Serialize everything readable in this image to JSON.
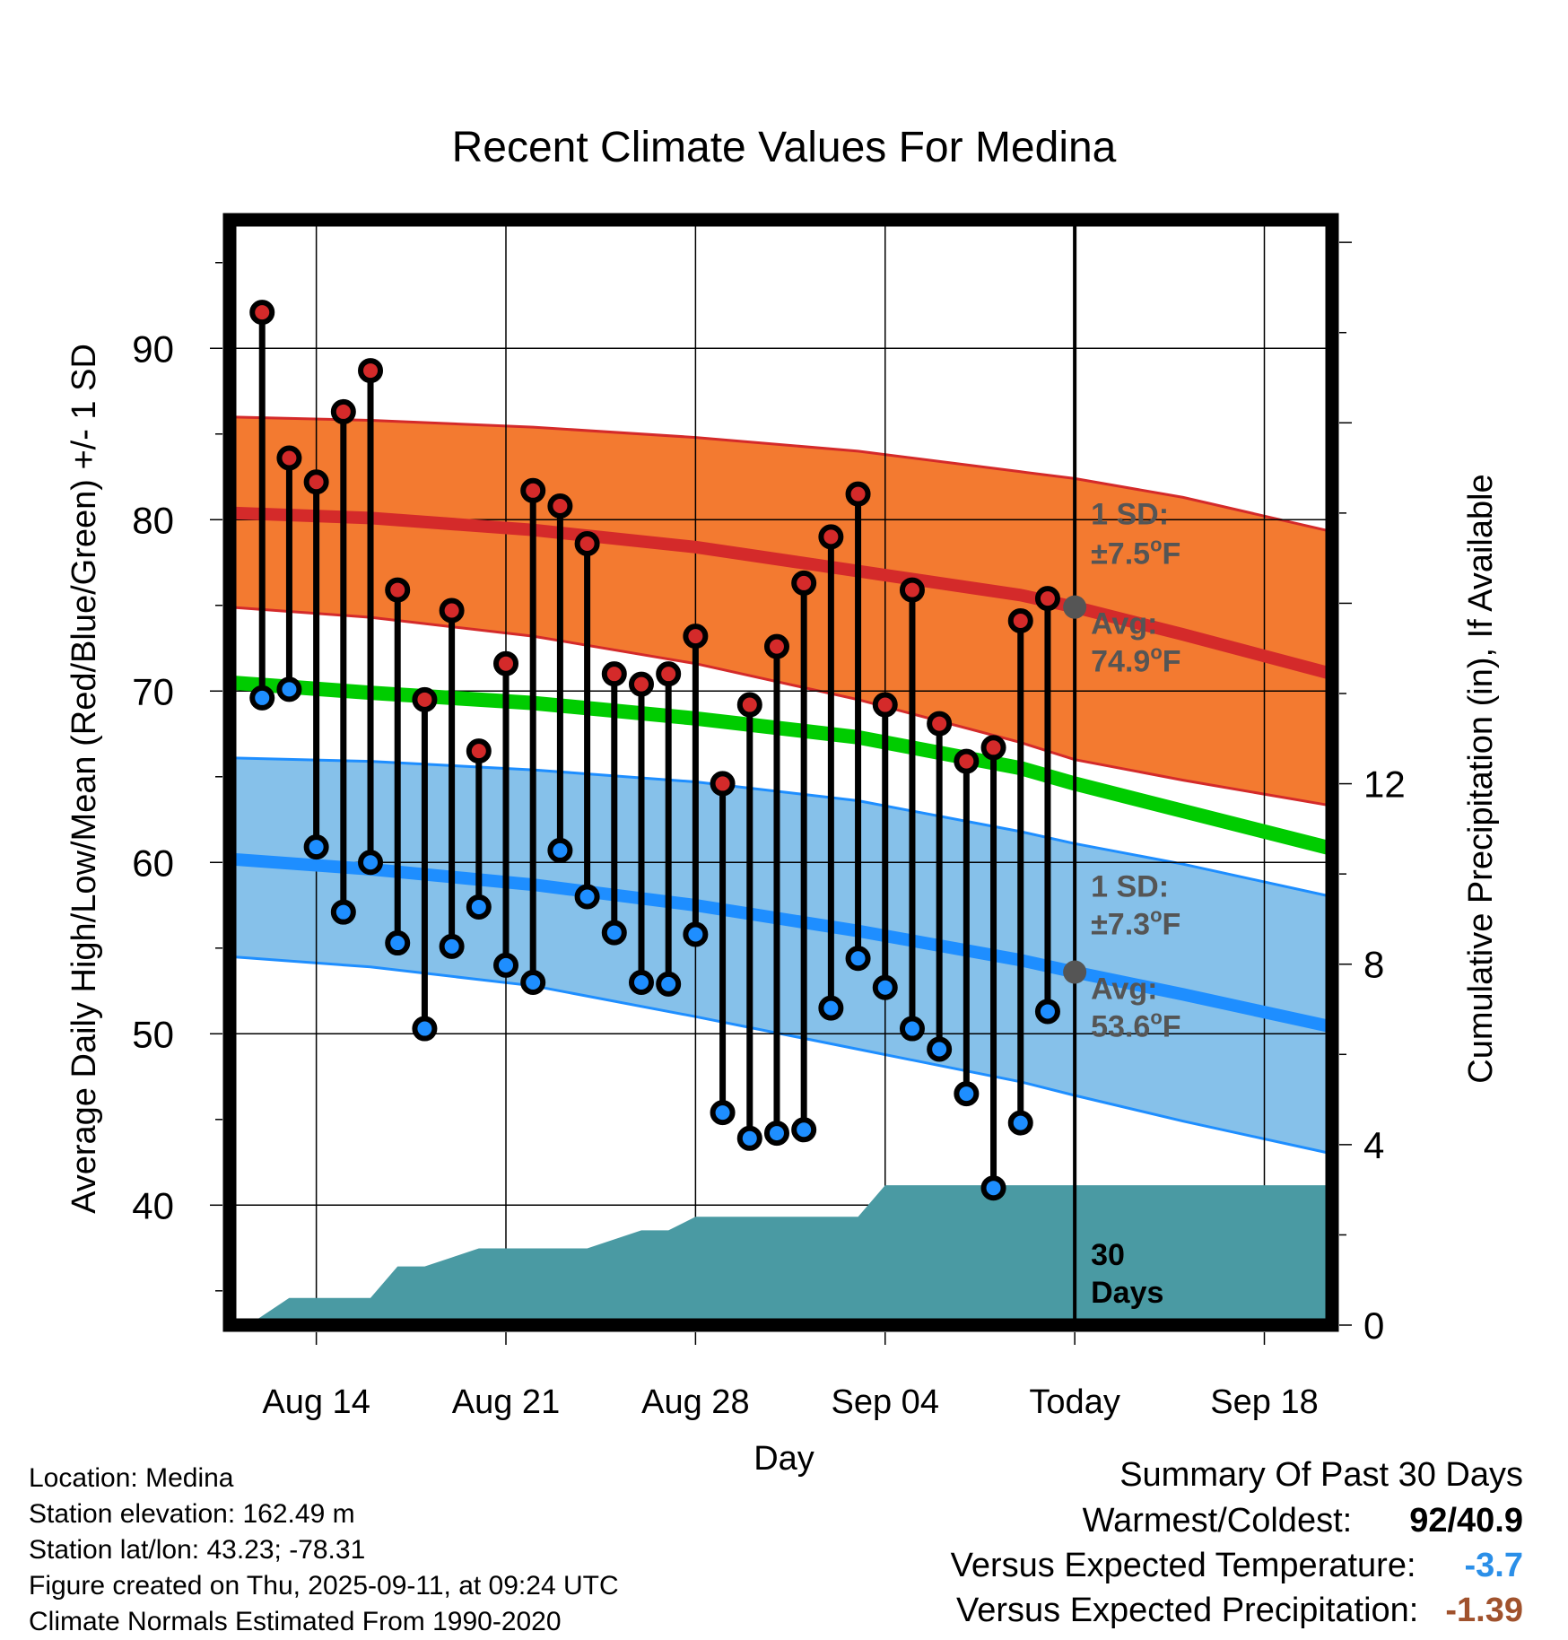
{
  "title": "Recent Climate Values For Medina",
  "chart_data": {
    "type": "line",
    "title": "Recent Climate Values For Medina",
    "xlabel": "Day",
    "ylabel": "Average Daily High/Low/Mean (Red/Blue/Green) +/- 1 SD",
    "ylabel_right": "Cumulative Precipitation (in), If Available",
    "x_tick_labels": [
      "Aug 14",
      "Aug 21",
      "Aug 28",
      "Sep 04",
      "Today",
      "Sep 18"
    ],
    "x_tick_days": [
      14,
      21,
      28,
      35,
      42,
      49
    ],
    "x_range_days": [
      10.8,
      51.5
    ],
    "x_day_note": "days counted from Aug 1; Today = Sep 11 = day 42",
    "y_ticks": [
      40,
      50,
      60,
      70,
      80,
      90
    ],
    "ylim": [
      33,
      97.5
    ],
    "y2_ticks": [
      0,
      4,
      8,
      12
    ],
    "y2lim": [
      0,
      24.5
    ],
    "grid": true,
    "daily": [
      {
        "day": 12,
        "high": 92.1,
        "low": 69.6
      },
      {
        "day": 13,
        "high": 83.6,
        "low": 70.1
      },
      {
        "day": 14,
        "high": 82.2,
        "low": 60.9
      },
      {
        "day": 15,
        "high": 86.3,
        "low": 57.1
      },
      {
        "day": 16,
        "high": 88.7,
        "low": 60.0
      },
      {
        "day": 17,
        "high": 75.9,
        "low": 55.3
      },
      {
        "day": 18,
        "high": 69.5,
        "low": 50.3
      },
      {
        "day": 19,
        "high": 74.7,
        "low": 55.1
      },
      {
        "day": 20,
        "high": 66.5,
        "low": 57.4
      },
      {
        "day": 21,
        "high": 71.6,
        "low": 54.0
      },
      {
        "day": 22,
        "high": 81.7,
        "low": 53.0
      },
      {
        "day": 23,
        "high": 80.8,
        "low": 60.7
      },
      {
        "day": 24,
        "high": 78.6,
        "low": 58.0
      },
      {
        "day": 25,
        "high": 71.0,
        "low": 55.9
      },
      {
        "day": 26,
        "high": 70.4,
        "low": 53.0
      },
      {
        "day": 27,
        "high": 71.0,
        "low": 52.9
      },
      {
        "day": 28,
        "high": 73.2,
        "low": 55.8
      },
      {
        "day": 29,
        "high": 64.6,
        "low": 45.4
      },
      {
        "day": 30,
        "high": 69.2,
        "low": 43.9
      },
      {
        "day": 31,
        "high": 72.6,
        "low": 44.2
      },
      {
        "day": 32,
        "high": 76.3,
        "low": 44.4
      },
      {
        "day": 33,
        "high": 79.0,
        "low": 51.5
      },
      {
        "day": 34,
        "high": 81.5,
        "low": 54.4
      },
      {
        "day": 35,
        "high": 69.2,
        "low": 52.7
      },
      {
        "day": 36,
        "high": 75.9,
        "low": 50.3
      },
      {
        "day": 37,
        "high": 68.1,
        "low": 49.1
      },
      {
        "day": 38,
        "high": 65.9,
        "low": 46.5
      },
      {
        "day": 39,
        "high": 66.7,
        "low": 41.0
      },
      {
        "day": 40,
        "high": 74.1,
        "low": 44.8
      },
      {
        "day": 41,
        "high": 75.4,
        "low": 51.3
      }
    ],
    "normals": {
      "day": [
        10.8,
        16,
        22,
        28,
        34,
        40,
        42,
        46,
        51.5
      ],
      "high_avg": [
        80.4,
        80.1,
        79.4,
        78.4,
        77.0,
        75.6,
        74.9,
        73.3,
        71.0
      ],
      "high_sd_upper": [
        86.0,
        85.8,
        85.4,
        84.8,
        84.0,
        82.8,
        82.4,
        81.3,
        79.3
      ],
      "high_sd_lower": [
        74.9,
        74.3,
        73.2,
        71.6,
        69.5,
        67.0,
        66.0,
        64.8,
        63.3
      ],
      "mean_avg": [
        70.5,
        69.9,
        69.3,
        68.4,
        67.3,
        65.5,
        64.6,
        63.0,
        60.8
      ],
      "low_avg": [
        60.2,
        59.6,
        58.7,
        57.5,
        56.0,
        54.3,
        53.6,
        52.3,
        50.4
      ],
      "low_sd_upper": [
        66.1,
        65.9,
        65.4,
        64.7,
        63.6,
        61.8,
        61.1,
        59.9,
        58.0
      ],
      "low_sd_lower": [
        54.5,
        53.9,
        52.8,
        51.0,
        49.1,
        47.2,
        46.4,
        44.9,
        43.0
      ]
    },
    "precip_cumulative": {
      "day": [
        11.0,
        11.5,
        13.0,
        16.0,
        17.0,
        18.0,
        19.0,
        20.0,
        21.0,
        24.0,
        26.0,
        27.0,
        28.0,
        34.0,
        35.0,
        36.0,
        51.5
      ],
      "value": [
        0.0,
        0.0,
        0.6,
        0.6,
        1.3,
        1.3,
        1.5,
        1.7,
        1.7,
        1.7,
        2.1,
        2.1,
        2.4,
        2.4,
        3.1,
        3.1,
        3.1
      ]
    },
    "annotations": {
      "high_sd_label": "1 SD:",
      "high_sd_value": "±7.5",
      "high_avg_label": "Avg:",
      "high_avg_value": "74.9",
      "low_sd_label": "1 SD:",
      "low_sd_value": "±7.3",
      "low_avg_label": "Avg:",
      "low_avg_value": "53.6",
      "degree_unit": "o",
      "unit": "F",
      "precip_days_line1": "30",
      "precip_days_line2": "Days"
    },
    "colors": {
      "high": "#d42a2a",
      "high_band": "#f37a30",
      "low": "#1e8eff",
      "low_band": "#86c1ea",
      "mean": "#00cc00",
      "precip": "#4a9aa3",
      "today_marker": "#555555",
      "annotation_text": "#555555"
    }
  },
  "footer": {
    "location": "Location: Medina",
    "elevation": "Station elevation: 162.49 m",
    "latlon": "Station lat/lon: 43.23; -78.31",
    "created": "Figure created on Thu, 2025-09-11, at 09:24 UTC",
    "normals": "Climate Normals Estimated From 1990-2020"
  },
  "summary": {
    "title": "Summary Of Past 30 Days",
    "warmest_label": "Warmest/Coldest:",
    "warmest_value": "92/40.9",
    "temp_label": "Versus Expected Temperature:",
    "temp_value": "-3.7",
    "temp_color": "#2b8fe8",
    "precip_label": "Versus Expected Precipitation:",
    "precip_value": "-1.39",
    "precip_color": "#a0522d"
  }
}
